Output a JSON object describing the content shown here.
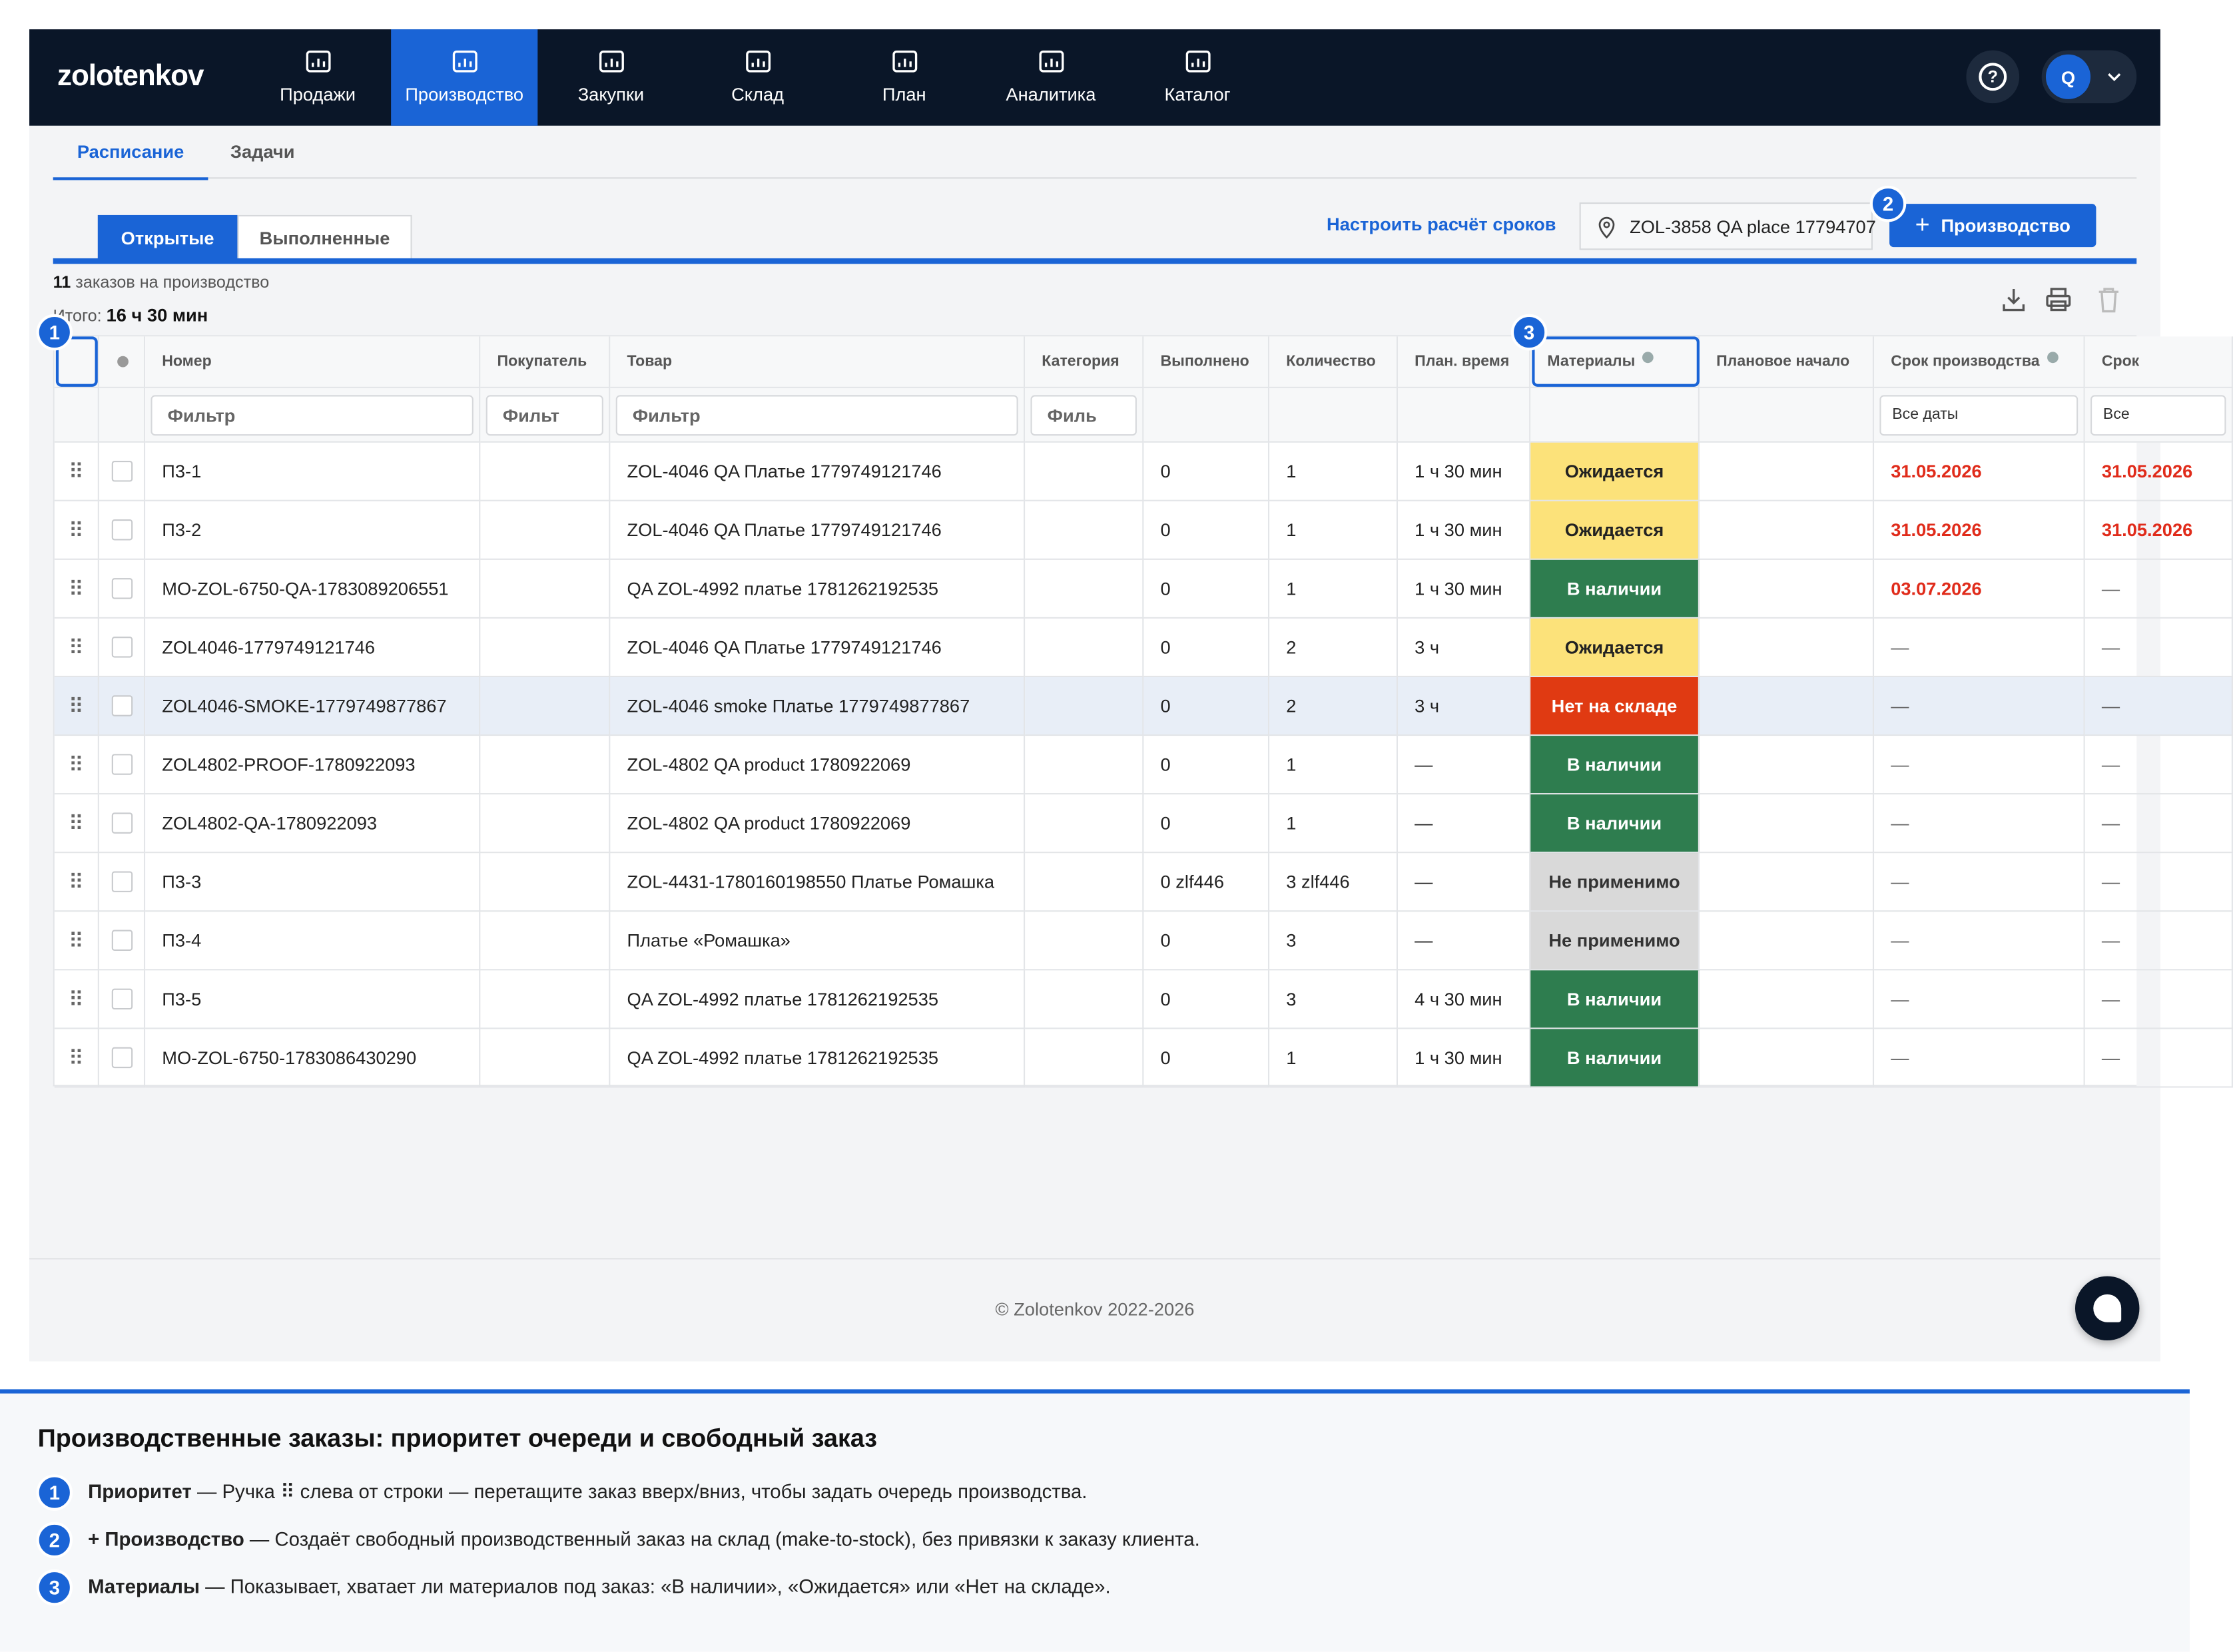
{
  "header": {
    "brand": "zolotenkov",
    "nav": [
      "Продажи",
      "Производство",
      "Закупки",
      "Склад",
      "План",
      "Аналитика",
      "Каталог"
    ],
    "active_nav": 1,
    "help": "?",
    "avatar": "Q"
  },
  "subtabs": [
    "Расписание",
    "Задачи"
  ],
  "status_tabs": [
    "Открытые",
    "Выполненные"
  ],
  "toolbar": {
    "link": "Настроить расчёт сроков",
    "location": "ZOL-3858 QA place 17794707",
    "button_icon": "+",
    "button": "Производство"
  },
  "summary": {
    "count": "11",
    "count_text": "заказов на производство",
    "total_label": "Итого:",
    "total": "16 ч 30 мин"
  },
  "callouts": [
    "1",
    "2",
    "3"
  ],
  "table": {
    "columns": [
      "Номер",
      "Покупатель",
      "Товар",
      "Категория",
      "Выполнено",
      "Количество",
      "План. время",
      "Материалы",
      "Плановое начало",
      "Срок производства",
      "Срок"
    ],
    "filters": [
      "Фильтр",
      "Фильт",
      "Фильтр",
      "Филь",
      null,
      null,
      null,
      null,
      null,
      "Все даты",
      "Все"
    ],
    "rows": [
      {
        "cells": [
          "П3-1",
          null,
          "ZOL-4046 QA Платье 1779749121746",
          null,
          "0",
          "1",
          "1 ч 30 мин",
          "Ожидается",
          null,
          "31.05.2026",
          "31.05.2026"
        ],
        "materials_style": {
          "bg": "#fce27a",
          "fg": "#222222"
        },
        "overdue": true
      },
      {
        "cells": [
          "П3-2",
          null,
          "ZOL-4046 QA Платье 1779749121746",
          null,
          "0",
          "1",
          "1 ч 30 мин",
          "Ожидается",
          null,
          "31.05.2026",
          "31.05.2026"
        ],
        "materials_style": {
          "bg": "#fce27a",
          "fg": "#222222"
        },
        "overdue": true
      },
      {
        "cells": [
          "MO-ZOL-6750-QA-1783089206551",
          null,
          "QA ZOL-4992 платье 1781262192535",
          null,
          "0",
          "1",
          "1 ч 30 мин",
          "В наличии",
          null,
          "03.07.2026",
          "—"
        ],
        "materials_style": {
          "bg": "#2e7d4f",
          "fg": "#ffffff"
        },
        "overdue": true
      },
      {
        "cells": [
          "ZOL4046-1779749121746",
          null,
          "ZOL-4046 QA Платье 1779749121746",
          null,
          "0",
          "2",
          "3 ч",
          "Ожидается",
          null,
          "—",
          "—"
        ],
        "materials_style": {
          "bg": "#fce27a",
          "fg": "#222222"
        }
      },
      {
        "cells": [
          "ZOL4046-SMOKE-1779749877867",
          null,
          "ZOL-4046 smoke Платье 1779749877867",
          null,
          "0",
          "2",
          "3 ч",
          "Нет на складе",
          null,
          "—",
          "—"
        ],
        "materials_style": {
          "bg": "#e03a12",
          "fg": "#ffffff"
        },
        "highlight": true
      },
      {
        "cells": [
          "ZOL4802-PROOF-1780922093",
          null,
          "ZOL-4802 QA product 1780922069",
          null,
          "0",
          "1",
          "—",
          "В наличии",
          null,
          "—",
          "—"
        ],
        "materials_style": {
          "bg": "#2e7d4f",
          "fg": "#ffffff"
        }
      },
      {
        "cells": [
          "ZOL4802-QA-1780922093",
          null,
          "ZOL-4802 QA product 1780922069",
          null,
          "0",
          "1",
          "—",
          "В наличии",
          null,
          "—",
          "—"
        ],
        "materials_style": {
          "bg": "#2e7d4f",
          "fg": "#ffffff"
        }
      },
      {
        "cells": [
          "П3-3",
          null,
          "ZOL-4431-1780160198550 Платье Ромашка",
          null,
          "0 zlf446",
          "3 zlf446",
          "—",
          "Не применимо",
          null,
          "—",
          "—"
        ],
        "materials_style": {
          "bg": "#d9d9d9",
          "fg": "#333333"
        }
      },
      {
        "cells": [
          "П3-4",
          null,
          "Платье «Ромашка»",
          null,
          "0",
          "3",
          "—",
          "Не применимо",
          null,
          "—",
          "—"
        ],
        "materials_style": {
          "bg": "#d9d9d9",
          "fg": "#333333"
        }
      },
      {
        "cells": [
          "П3-5",
          null,
          "QA ZOL-4992 платье 1781262192535",
          null,
          "0",
          "3",
          "4 ч 30 мин",
          "В наличии",
          null,
          "—",
          "—"
        ],
        "materials_style": {
          "bg": "#2e7d4f",
          "fg": "#ffffff"
        }
      },
      {
        "cells": [
          "MO-ZOL-6750-1783086430290",
          null,
          "QA ZOL-4992 платье 1781262192535",
          null,
          "0",
          "1",
          "1 ч 30 мин",
          "В наличии",
          null,
          "—",
          "—"
        ],
        "materials_style": {
          "bg": "#2e7d4f",
          "fg": "#ffffff"
        }
      }
    ]
  },
  "footer": "© Zolotenkov 2022-2026",
  "help": {
    "title": "Производственные заказы: приоритет очереди и свободный заказ",
    "items": [
      {
        "num": "1",
        "term": "Приоритет",
        "text": "— Ручка ⠿ слева от строки — перетащите заказ вверх/вниз, чтобы задать очередь производства."
      },
      {
        "num": "2",
        "term": "+ Производство",
        "text": "— Создаёт свободный производственный заказ на склад (make-to-stock), без привязки к заказу клиента."
      },
      {
        "num": "3",
        "term": "Материалы",
        "text": "— Показывает, хватает ли материалов под заказ: «В наличии», «Ожидается» или «Нет на складе»."
      }
    ]
  }
}
